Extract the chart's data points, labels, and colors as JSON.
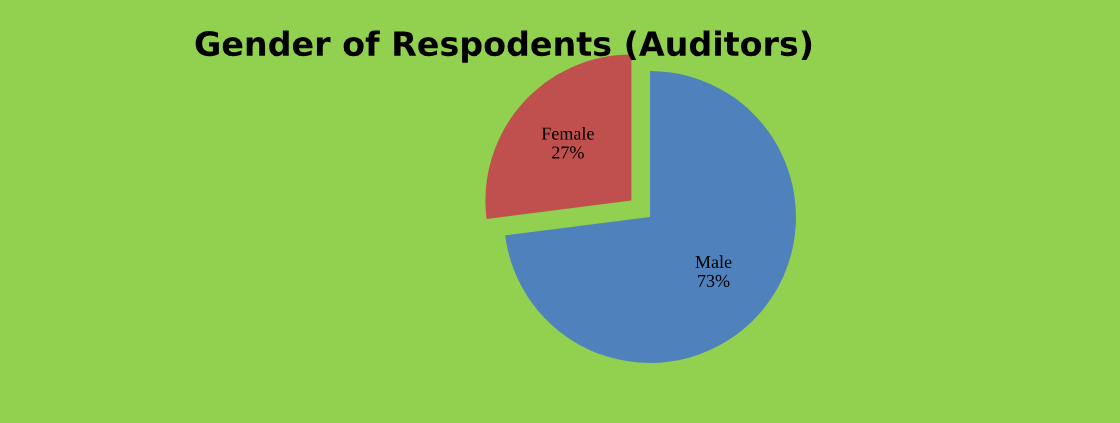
{
  "chart_data": {
    "type": "pie",
    "title": "Gender of Respodents (Auditors)",
    "categories": [
      "Male",
      "Female"
    ],
    "values": [
      73,
      27
    ],
    "colors": [
      "#4f81bd",
      "#c0504d"
    ],
    "value_labels": [
      "73%",
      "27%"
    ],
    "legend": false
  }
}
